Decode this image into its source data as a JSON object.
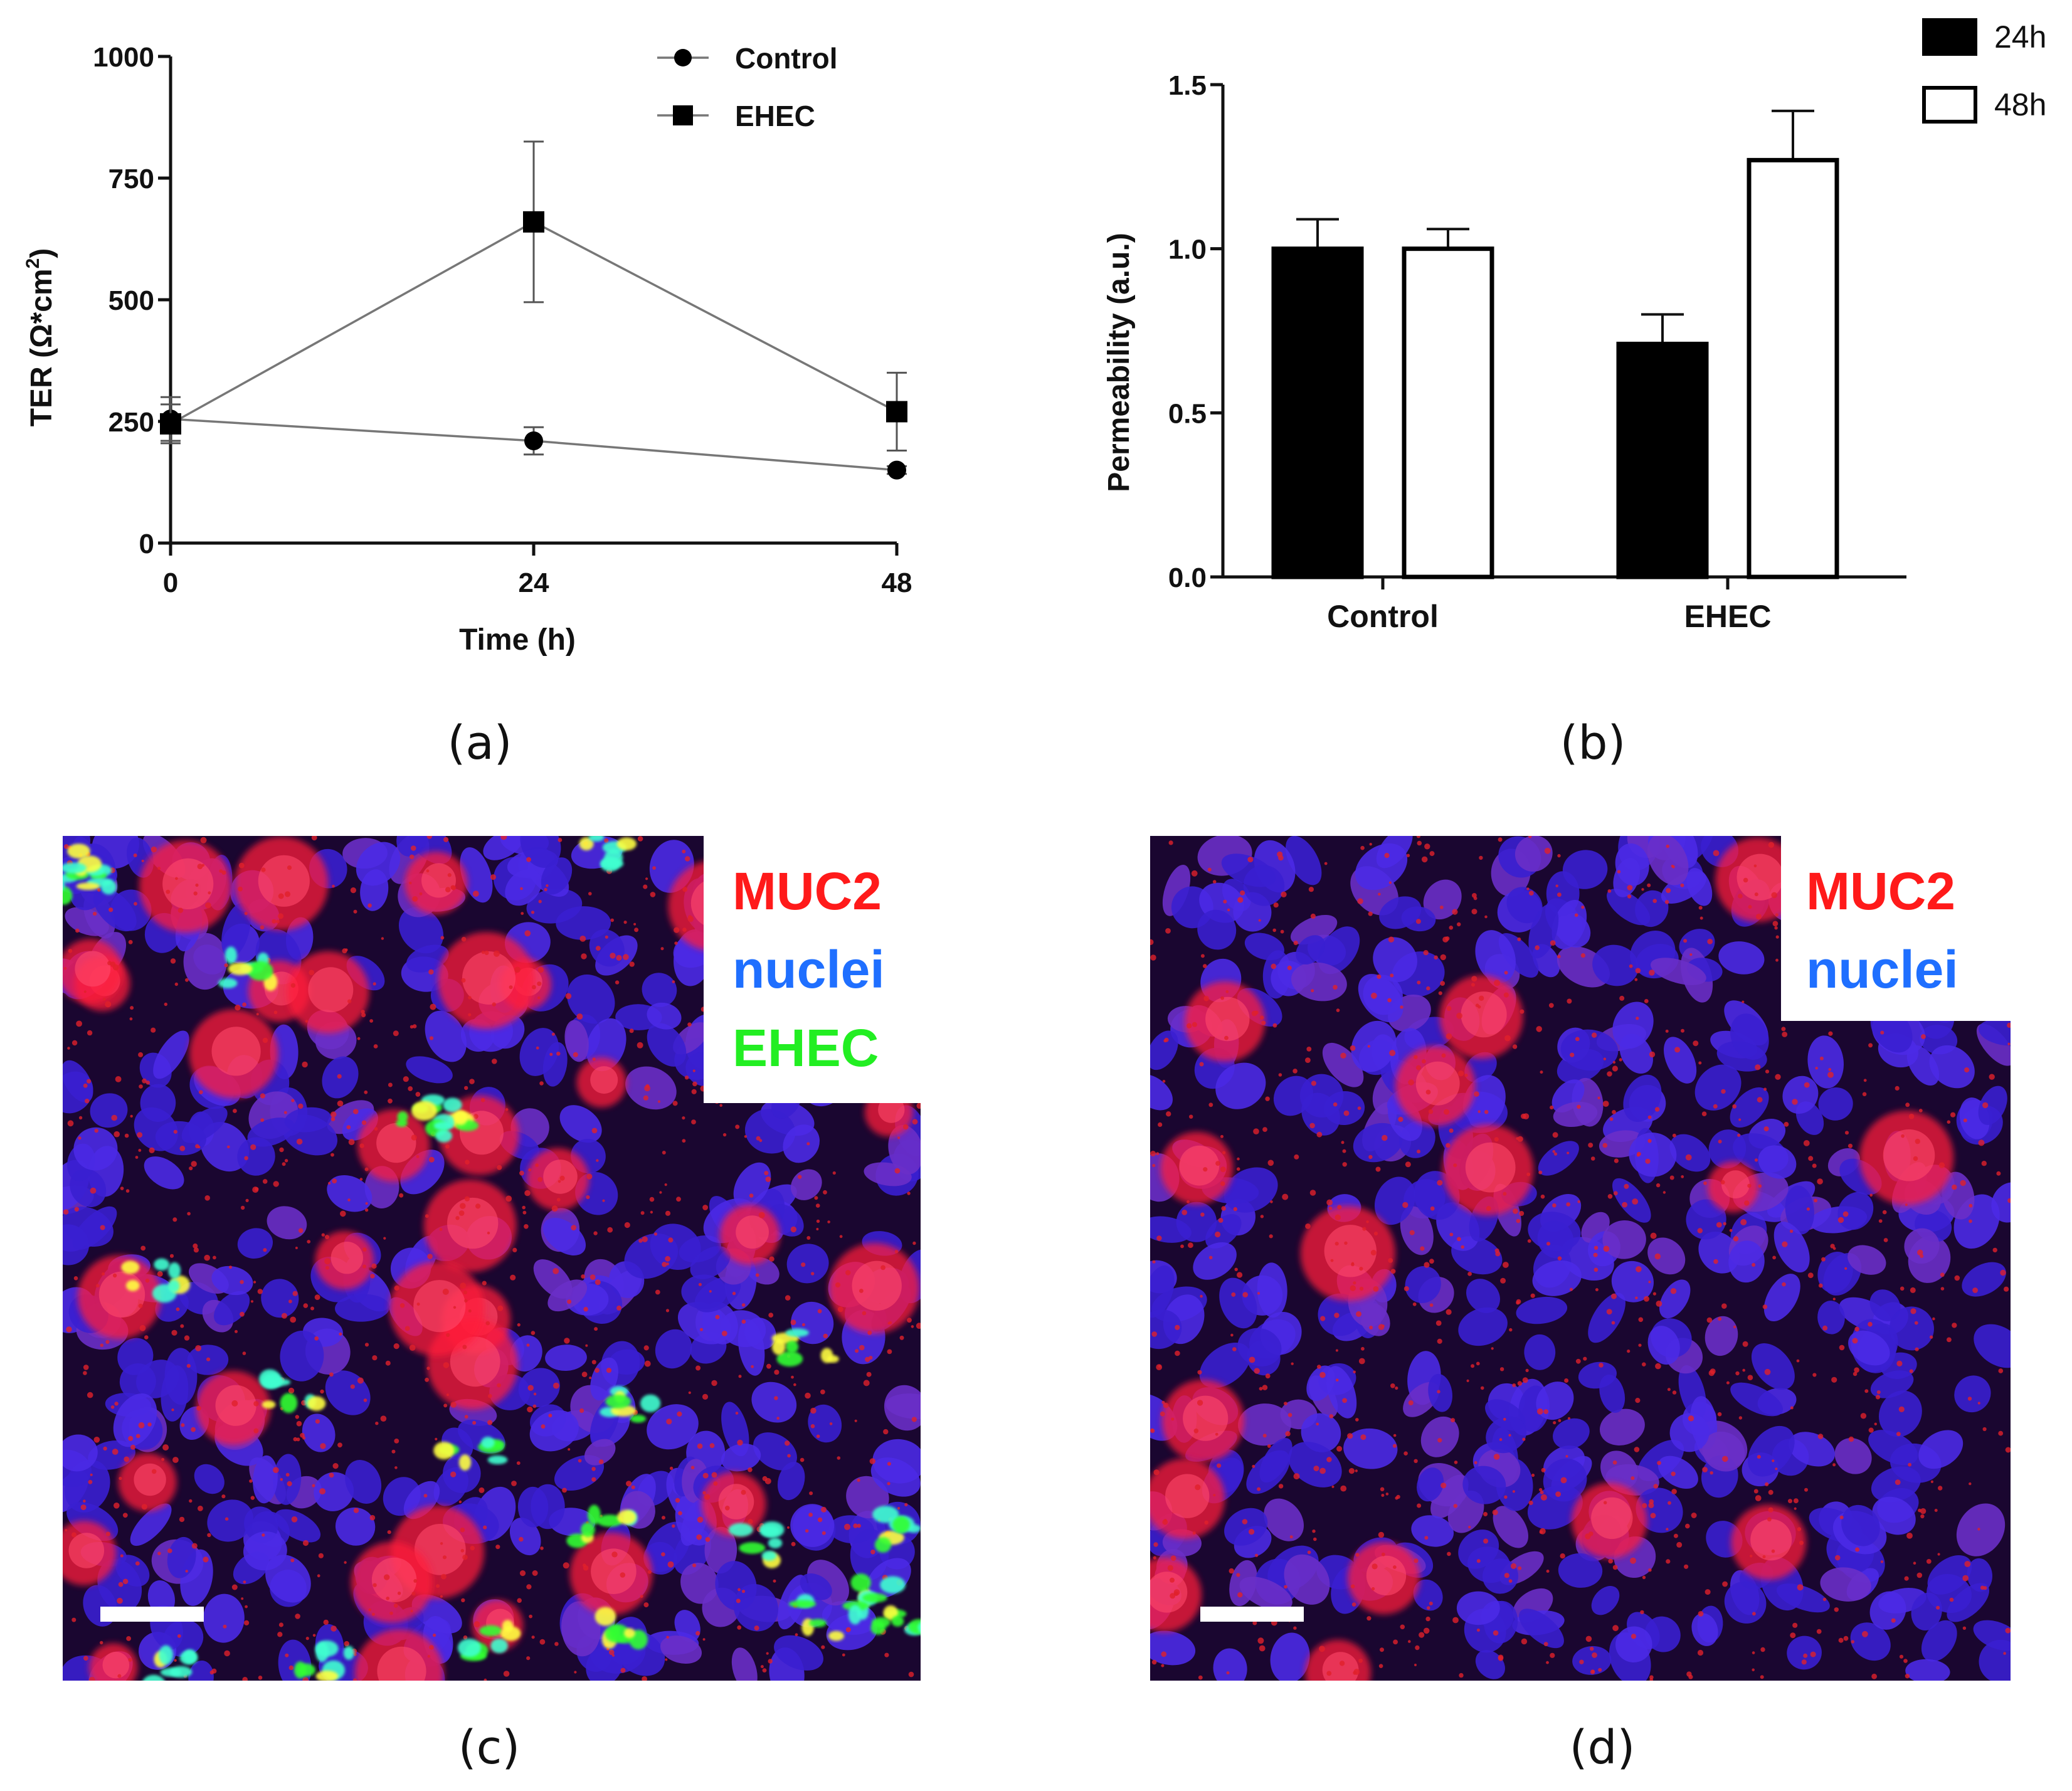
{
  "panels": [
    {
      "label": "(a)"
    },
    {
      "label": "(b)"
    },
    {
      "label": "(c)"
    },
    {
      "label": "(d)"
    }
  ],
  "chart_data": [
    {
      "type": "line",
      "ylabel_main": "TER (Ω*cm",
      "ylabel_sup": "2",
      "ylabel_close": ")",
      "xlabel": "Time (h)",
      "x": [
        0,
        24,
        48
      ],
      "xticks": [
        "0",
        "24",
        "48"
      ],
      "yticks": [
        "0",
        "250",
        "500",
        "750",
        "1000"
      ],
      "xlim": [
        0,
        48
      ],
      "ylim": [
        0,
        1000
      ],
      "legend_position": "top-right",
      "series": [
        {
          "name": "Control",
          "marker": "circle",
          "values": [
            255,
            210,
            150
          ],
          "errors": [
            45,
            28,
            8
          ]
        },
        {
          "name": "EHEC",
          "marker": "square",
          "values": [
            245,
            660,
            270
          ],
          "errors": [
            40,
            165,
            80
          ]
        }
      ]
    },
    {
      "type": "bar",
      "ylabel": "Permeability (a.u.)",
      "categories": [
        "Control",
        "EHEC"
      ],
      "yticks": [
        "0.0",
        "0.5",
        "1.0",
        "1.5"
      ],
      "ylim": [
        0,
        1.5
      ],
      "legend_position": "top-right",
      "series": [
        {
          "name": "24h",
          "fill": "#000000",
          "values": [
            1.0,
            0.71
          ],
          "errors": [
            0.09,
            0.09
          ]
        },
        {
          "name": "48h",
          "fill": "#ffffff",
          "values": [
            1.0,
            1.27
          ],
          "errors": [
            0.06,
            0.15
          ]
        }
      ]
    }
  ],
  "micrographs": [
    {
      "labels": [
        {
          "text": "MUC2",
          "color": "#ff1a1a"
        },
        {
          "text": "nuclei",
          "color": "#1f6fff"
        },
        {
          "text": "EHEC",
          "color": "#22ee22"
        }
      ]
    },
    {
      "labels": [
        {
          "text": "MUC2",
          "color": "#ff1a1a"
        },
        {
          "text": "nuclei",
          "color": "#1f6fff"
        }
      ]
    }
  ]
}
